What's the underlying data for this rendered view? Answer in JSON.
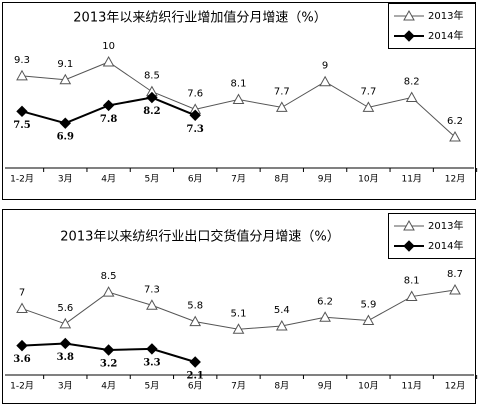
{
  "chart_data": [
    {
      "type": "line",
      "title": "2013年以来纺织行业增加值分月增速（%）",
      "categories": [
        "1-2月",
        "3月",
        "4月",
        "5月",
        "6月",
        "7月",
        "8月",
        "9月",
        "10月",
        "11月",
        "12月"
      ],
      "series": [
        {
          "name": "2013年",
          "color": "#555555",
          "values": [
            9.3,
            9.1,
            10,
            8.5,
            7.6,
            8.1,
            7.7,
            9,
            7.7,
            8.2,
            6.2
          ]
        },
        {
          "name": "2014年",
          "color": "#000000",
          "values": [
            7.5,
            6.9,
            7.8,
            8.2,
            7.3,
            null,
            null,
            null,
            null,
            null,
            null
          ]
        }
      ]
    },
    {
      "type": "line",
      "title": "2013年以来纺织行业出口交货值分月增速（%）",
      "categories": [
        "1-2月",
        "3月",
        "4月",
        "5月",
        "6月",
        "7月",
        "8月",
        "9月",
        "10月",
        "11月",
        "12月"
      ],
      "series": [
        {
          "name": "2013年",
          "color": "#555555",
          "values": [
            7,
            5.6,
            8.5,
            7.3,
            5.8,
            5.1,
            5.4,
            6.2,
            5.9,
            8.1,
            8.7
          ]
        },
        {
          "name": "2014年",
          "color": "#000000",
          "values": [
            3.6,
            3.8,
            3.2,
            3.3,
            2.1,
            null,
            null,
            null,
            null,
            null,
            null
          ]
        }
      ]
    }
  ]
}
